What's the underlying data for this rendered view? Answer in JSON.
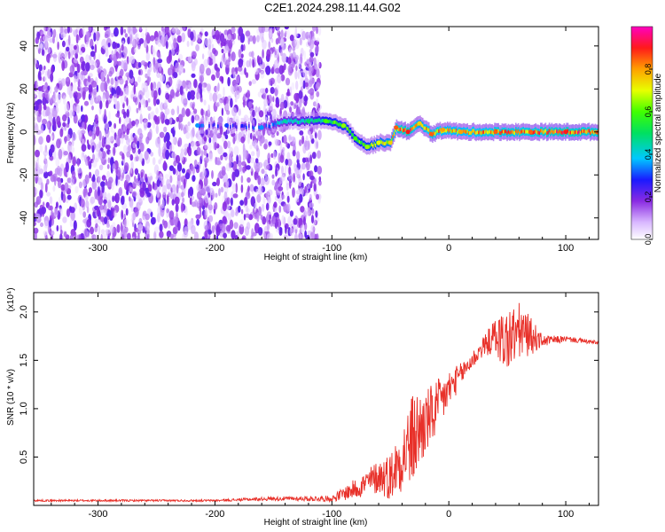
{
  "title": "C2E1.2024.298.11.44.G02",
  "chart_data": [
    {
      "type": "heatmap",
      "title": "C2E1.2024.298.11.44.G02",
      "xlabel": "Height of straight line (km)",
      "ylabel": "Frequency (Hz)",
      "xlim": [
        -355,
        128
      ],
      "ylim": [
        -50,
        49
      ],
      "x_ticks": [
        -300,
        -200,
        -100,
        0,
        100
      ],
      "y_ticks": [
        -40,
        -20,
        0,
        20,
        40
      ],
      "colorbar": {
        "label": "Normalized spectral amplitude",
        "range": [
          0.0,
          1.0
        ],
        "ticks": [
          0.0,
          0.2,
          0.4,
          0.6,
          0.8
        ],
        "tick_labels": [
          "0.0",
          "0.2",
          "0.4",
          "0.6",
          "0.8"
        ],
        "colormap": "rainbow (white-violet-blue-cyan-green-yellow-red-magenta)"
      },
      "noise_region": {
        "x_range": [
          -355,
          -110
        ],
        "amplitude": 0.1
      },
      "signal_track": [
        {
          "x": -215,
          "freq": 3,
          "amp": 0.3
        },
        {
          "x": -190,
          "freq": 3,
          "amp": 0.25
        },
        {
          "x": -160,
          "freq": 2,
          "amp": 0.3
        },
        {
          "x": -140,
          "freq": 5,
          "amp": 0.4
        },
        {
          "x": -120,
          "freq": 5,
          "amp": 0.45
        },
        {
          "x": -105,
          "freq": 5,
          "amp": 0.55
        },
        {
          "x": -90,
          "freq": 3,
          "amp": 0.6
        },
        {
          "x": -80,
          "freq": -3,
          "amp": 0.55
        },
        {
          "x": -70,
          "freq": -7,
          "amp": 0.6
        },
        {
          "x": -60,
          "freq": -5,
          "amp": 0.65
        },
        {
          "x": -50,
          "freq": -5,
          "amp": 0.7
        },
        {
          "x": -45,
          "freq": 2,
          "amp": 0.8
        },
        {
          "x": -35,
          "freq": 0,
          "amp": 0.85
        },
        {
          "x": -25,
          "freq": 4,
          "amp": 0.7
        },
        {
          "x": -15,
          "freq": -1,
          "amp": 0.8
        },
        {
          "x": -5,
          "freq": 1,
          "amp": 0.75
        },
        {
          "x": 10,
          "freq": 0,
          "amp": 0.75
        },
        {
          "x": 40,
          "freq": 0,
          "amp": 0.8
        },
        {
          "x": 70,
          "freq": 0,
          "amp": 0.8
        },
        {
          "x": 100,
          "freq": 0,
          "amp": 0.85
        },
        {
          "x": 128,
          "freq": 0,
          "amp": 0.8
        }
      ]
    },
    {
      "type": "line",
      "xlabel": "Height of straight line (km)",
      "ylabel": "SNR (10 * v/v)",
      "y_multiplier": "(x10⁴)",
      "xlim": [
        -355,
        128
      ],
      "ylim": [
        0,
        2.2
      ],
      "x_ticks": [
        -300,
        -200,
        -100,
        0,
        100
      ],
      "y_ticks": [
        0.5,
        1.0,
        1.5,
        2.0
      ],
      "y_tick_labels": [
        "0.5",
        "1.0",
        "1.5",
        "2.0"
      ],
      "series": [
        {
          "color": "#e8312a",
          "envelope": {
            "x": [
              -355,
              -200,
              -150,
              -100,
              -90,
              -75,
              -60,
              -50,
              -40,
              -30,
              -20,
              -10,
              0,
              10,
              20,
              30,
              40,
              50,
              60,
              70,
              80,
              100,
              128
            ],
            "y": [
              0.05,
              0.05,
              0.07,
              0.07,
              0.12,
              0.2,
              0.3,
              0.3,
              0.5,
              0.7,
              0.85,
              1.0,
              1.2,
              1.35,
              1.5,
              1.65,
              1.75,
              1.7,
              1.8,
              1.75,
              1.7,
              1.72,
              1.68
            ],
            "noise": [
              0.01,
              0.01,
              0.02,
              0.03,
              0.07,
              0.12,
              0.18,
              0.25,
              0.35,
              0.5,
              0.35,
              0.3,
              0.2,
              0.12,
              0.1,
              0.1,
              0.2,
              0.35,
              0.3,
              0.2,
              0.06,
              0.03,
              0.02
            ]
          }
        }
      ]
    }
  ]
}
